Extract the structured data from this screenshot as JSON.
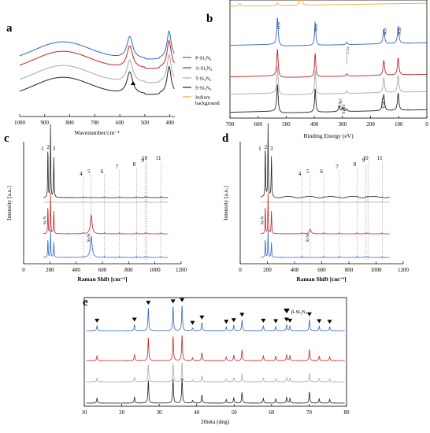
{
  "panel_labels": {
    "a": "a",
    "b": "b",
    "c": "c",
    "d": "d",
    "e": "e"
  },
  "colors": {
    "blue": "#2f66c6",
    "red": "#c42222",
    "gray": "#a9a9a9",
    "black": "#222222",
    "orange": "#f2a93b"
  },
  "legend": {
    "items": [
      {
        "label": "P-Si₃N₄",
        "color": "#2f66c6"
      },
      {
        "label": "A-Si₃N₄",
        "color": "#c42222"
      },
      {
        "label": "T-Si₃N₄",
        "color": "#a9a9a9"
      },
      {
        "label": "S-Si₃N₄",
        "color": "#222222"
      },
      {
        "label": "Indium",
        "label2": "background",
        "color": "#f2a93b"
      }
    ]
  },
  "chart_data": [
    {
      "id": "a",
      "type": "line",
      "xlabel": "Wavenumber/cm⁻¹",
      "ylabel": "",
      "xlim": [
        1000,
        380
      ],
      "reversed_x": true,
      "xticks": [
        "1000",
        "900",
        "800",
        "700",
        "600",
        "500",
        "400"
      ],
      "series_colors": [
        "#2f66c6",
        "#c42222",
        "#a9a9a9",
        "#222222"
      ],
      "features": {
        "broad_band_cm": 830,
        "sharp_band_cm": 560,
        "sharp_band2_cm": 400,
        "arrow_marker_cm": 470
      }
    },
    {
      "id": "b",
      "type": "line",
      "xlabel": "Binding Energy (eV)",
      "ylabel": "",
      "xlim": [
        700,
        0
      ],
      "reversed_x": true,
      "xticks": [
        "700",
        "600",
        "500",
        "400",
        "300",
        "200",
        "100",
        "0"
      ],
      "series_colors": [
        "#f2a93b",
        "#2f66c6",
        "#c42222",
        "#a9a9a9",
        "#222222"
      ],
      "peak_labels": [
        "O1s",
        "N1s",
        "C1s",
        "Si2s",
        "Si2p",
        "Y3p1",
        "Y3p3",
        "Y3d"
      ],
      "peaks_eV": {
        "O1s": 531,
        "N1s": 397,
        "C1s": 285,
        "Si2s": 153,
        "Si2p": 102,
        "Y3p1": 312,
        "Y3p3": 300,
        "Y3d": 158
      }
    },
    {
      "id": "c",
      "type": "line",
      "xlabel": "Raman Shift [cm⁻¹]",
      "ylabel": "Intensity [a.u.]",
      "xlim": [
        0,
        1200
      ],
      "xticks": [
        "0",
        "200",
        "400",
        "600",
        "800",
        "1000",
        "1200"
      ],
      "peak_numbers": [
        "1",
        "2",
        "3",
        "4",
        "5",
        "6",
        "7",
        "8",
        "9",
        "10",
        "11"
      ],
      "peak_positions_cm": [
        185,
        205,
        230,
        455,
        515,
        615,
        730,
        860,
        925,
        940,
        1045
      ],
      "annotations": [
        "Si-N",
        "Si-Si"
      ],
      "series_colors": [
        "#222222",
        "#a9a9a9",
        "#c42222",
        "#2f66c6"
      ]
    },
    {
      "id": "d",
      "type": "line",
      "xlabel": "Raman Shift [cm⁻¹]",
      "ylabel": "Intensity [a.u.]",
      "xlim": [
        0,
        1200
      ],
      "xticks": [
        "0",
        "200",
        "400",
        "600",
        "800",
        "1000",
        "1200"
      ],
      "peak_numbers": [
        "1",
        "2",
        "3",
        "4",
        "5",
        "6",
        "7",
        "8",
        "9",
        "10",
        "11"
      ],
      "peak_positions_cm": [
        185,
        205,
        230,
        455,
        515,
        615,
        730,
        860,
        925,
        940,
        1045
      ],
      "annotations": [
        "Si-N",
        "Si-Si"
      ],
      "series_colors": [
        "#222222",
        "#a9a9a9",
        "#c42222",
        "#2f66c6"
      ]
    },
    {
      "id": "e",
      "type": "line",
      "xlabel": "2theta (deg)",
      "ylabel": "",
      "xlim": [
        10,
        80
      ],
      "xticks": [
        "10",
        "20",
        "30",
        "40",
        "50",
        "60",
        "70",
        "80"
      ],
      "legend_marker": "▼",
      "legend_label": "β-Si₃N₄",
      "peaks_deg": [
        13.4,
        23.4,
        27.1,
        33.7,
        36.1,
        38.9,
        41.4,
        47.9,
        49.9,
        52.1,
        57.8,
        61.1,
        64.0,
        64.9,
        70.1,
        72.7,
        75.5
      ],
      "peak_heights": [
        0.18,
        0.22,
        0.85,
        0.9,
        0.95,
        0.1,
        0.3,
        0.14,
        0.2,
        0.4,
        0.18,
        0.16,
        0.22,
        0.18,
        0.42,
        0.16,
        0.14
      ],
      "series_colors": [
        "#2f66c6",
        "#c42222",
        "#a9a9a9",
        "#222222"
      ]
    }
  ]
}
